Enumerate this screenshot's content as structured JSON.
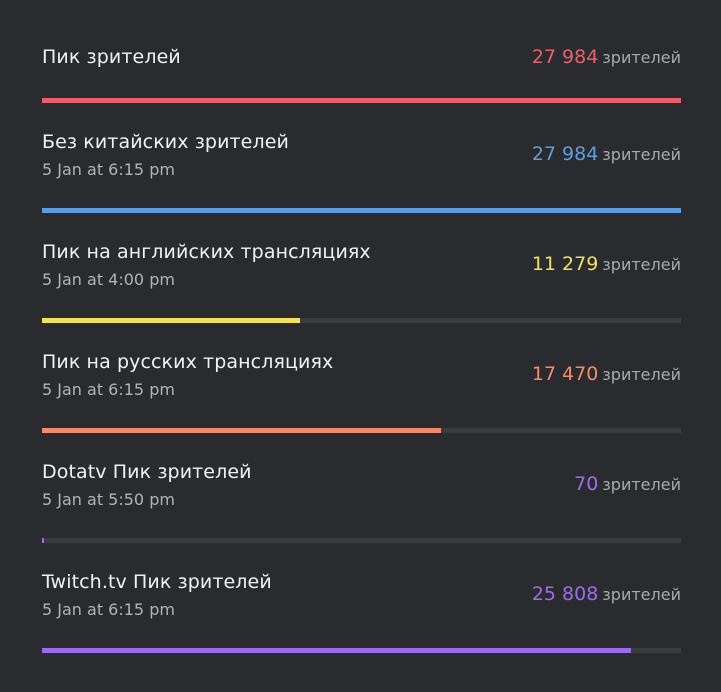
{
  "unit_label": "зрителей",
  "rows": [
    {
      "title": "Пик зрителей",
      "date": "",
      "value": "27 984",
      "amount": 27984,
      "color": "#e6616b"
    },
    {
      "title": "Без китайских зрителей",
      "date": "5 Jan at 6:15 pm",
      "value": "27 984",
      "amount": 27984,
      "color": "#5d9ee0"
    },
    {
      "title": "Пик на английских трансляциях",
      "date": "5 Jan at 4:00 pm",
      "value": "11 279",
      "amount": 11279,
      "color": "#f1e15a"
    },
    {
      "title": "Пик на русских трансляциях",
      "date": "5 Jan at 6:15 pm",
      "value": "17 470",
      "amount": 17470,
      "color": "#f08c6c"
    },
    {
      "title": "Dotatv Пик зрителей",
      "date": "5 Jan at 5:50 pm",
      "value": "70",
      "amount": 70,
      "color": "#9c6cf0"
    },
    {
      "title": "Twitch.tv Пик зрителей",
      "date": "5 Jan at 6:15 pm",
      "value": "25 808",
      "amount": 25808,
      "color": "#9c6cf0"
    }
  ],
  "max_amount": 27984
}
